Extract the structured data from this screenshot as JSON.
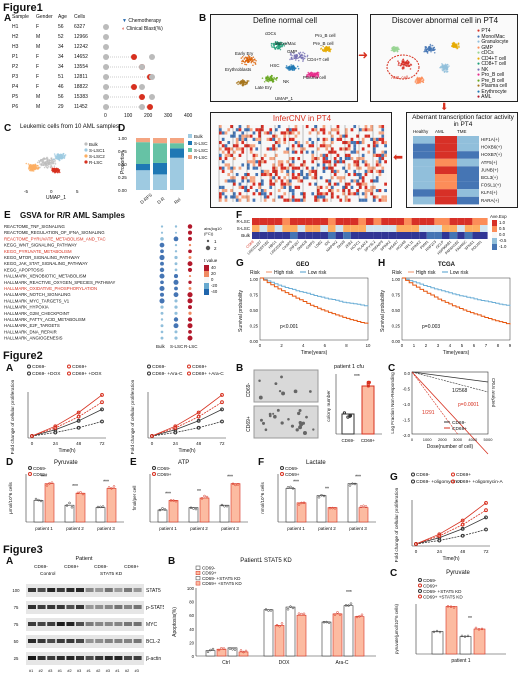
{
  "figure1": {
    "title": "Figure1",
    "panelA": {
      "label": "A",
      "headers": [
        "Sample",
        "Gender",
        "Age",
        "Cells"
      ],
      "rows": [
        [
          "H1",
          "F",
          "56",
          "6327"
        ],
        [
          "H2",
          "M",
          "52",
          "12966"
        ],
        [
          "H3",
          "M",
          "34",
          "12242"
        ],
        [
          "P1",
          "F",
          "34",
          "14652"
        ],
        [
          "P2",
          "F",
          "34",
          "13554"
        ],
        [
          "P3",
          "F",
          "51",
          "12811"
        ],
        [
          "P4",
          "F",
          "46",
          "18822"
        ],
        [
          "P5",
          "M",
          "56",
          "15383"
        ],
        [
          "P6",
          "M",
          "29",
          "11452"
        ]
      ],
      "legend_chemo": "Chemotherapy",
      "legend_blast": "Clinical Blast(%)",
      "axis_ticks": [
        "0",
        "100",
        "200",
        "300",
        "400"
      ]
    },
    "panelB": {
      "label": "B",
      "box1_title": "Define normal cell",
      "box2_title": "Discover abnormal cell in PT4",
      "box3_title": "InferCNV in PT4",
      "box4_title": "Aberrant transcription factor activity in PT4",
      "heat_cols": [
        "Healthy",
        "AML",
        "TME"
      ],
      "tf_list": [
        "HIF1A(+)",
        "HOXB6(+)",
        "HOXB7(+)",
        "ATF5(+)",
        "JUNB(+)",
        "BCL3(+)",
        "FOSL1(+)",
        "KLF4(+)",
        "RARA(+)"
      ],
      "umap_labels": [
        "Early Ery",
        "Mono/Mac",
        "GMP",
        "Erythroblasts",
        "HSC",
        "Pre_B cell",
        "CD4+T cell",
        "Pro_B cell",
        "Plasma cell",
        "NK",
        "cDCs",
        "Late Ery",
        "HSC",
        "NK",
        "CD8+T cell",
        "AML cell"
      ],
      "legend_items": [
        "PT4",
        "Mono/Mac",
        "Granulocyte",
        "GMP",
        "cDCs",
        "CD4+T cell",
        "CD8+T cell",
        "NK",
        "Pro_B cell",
        "Pre_B cell",
        "Plasma cell",
        "Erythrocyte",
        "AML"
      ],
      "axis_umap1": "UMAP_1",
      "axis_umap2": "UMAP_2"
    },
    "panelC": {
      "label": "C",
      "title": "Leukemic cells from 10 AML samples",
      "legend": [
        "Bulk",
        "S-LSC1",
        "S-LSC2",
        "R-LSC"
      ],
      "axis_x": "UMAP_1",
      "axis_y": "UMAP_2",
      "x_ticks": [
        "-5",
        "0",
        "5"
      ],
      "y_ticks": [
        "5",
        "0",
        "-5"
      ]
    },
    "panelD": {
      "label": "D",
      "ylabel": "Proportion",
      "categories": [
        "D-RFS",
        "D-R",
        "Rel"
      ],
      "legend": [
        "Bulk",
        "S-LSC1",
        "S-LSC2",
        "R-LSC"
      ],
      "y_ticks": [
        "0.00",
        "0.25",
        "0.50",
        "0.75",
        "1.00"
      ]
    },
    "panelE": {
      "label": "E",
      "title": "GSVA for R/R AML Samples",
      "pathways": [
        "REACTOME_TNF_SIGNALING",
        "REACTOME_REGULATION_OF_IFNA_SIGNALING",
        "REACTOME_PYRUVATE_METABOLISM_AND_TAC",
        "KEGG_WNT_SIGNALING_PATHWAY",
        "KEGG_PYRUVATE_METABOLISM",
        "KEGG_MTOR_SIGNALING_PATHWAY",
        "KEGG_JAK_STAT_SIGNALING_PATHWAY",
        "KEGG_APOPTOSIS",
        "HALLMARK_XENOBIOTIC_METABOLISM",
        "HALLMARK_REACTIVE_OXYGEN_SPECIES_PATHWAY",
        "HALLMARK_OXIDATIVE_PHOSPHORYLATION",
        "HALLMARK_NOTCH_SIGNALING",
        "HALLMARK_MYC_TARGETS_V1",
        "HALLMARK_HYPOXIA",
        "HALLMARK_G2M_CHECKPOINT",
        "HALLMARK_FATTY_ACID_METABOLISM",
        "HALLMARK_E2F_TARGETS",
        "HALLMARK_DNA_REPAIR",
        "HALLMARK_ANGIOGENESIS"
      ],
      "highlight": [
        "REACTOME_PYRUVATE_METABOLISM_AND_TAC",
        "KEGG_PYRUVATE_METABOLISM",
        "HALLMARK_OXIDATIVE_PHOSPHORYLATION"
      ],
      "cols": [
        "Bulk",
        "S-LSC",
        "R-LSC"
      ],
      "size_legend_title": "abs(log10\n(FC))",
      "size_legend": [
        "1",
        "2"
      ],
      "color_legend_title": "t value",
      "color_legend": [
        "40",
        "20",
        "0",
        "-20",
        "-40"
      ]
    },
    "panelF": {
      "label": "F",
      "rows": [
        "R-LSC",
        "S-LSC",
        "Bulk"
      ],
      "genes": [
        "CD69",
        "LINC01237",
        "EEF1B2",
        "HBG1",
        "LINC01876",
        "CKAP5",
        "ZNF267",
        "SNHG8",
        "GMPS",
        "LDB2",
        "ID2",
        "MAP4K2",
        "DHX9",
        "ZEB2",
        "HCFC1",
        "PLAAT4",
        "DPYSL2",
        "TNFAIP3",
        "SPINK2",
        "MS4A7",
        "HOXA9",
        "RPL11",
        "SPINK2",
        "PMM1",
        "RNF213",
        "OCLP",
        "HSP90AB1",
        "PAFAH1B2",
        "FAM46C",
        "SPNS1",
        "PDLIM1"
      ],
      "legend_title": "Ave.Exp",
      "legend_ticks": [
        "1.0",
        "0.5",
        "0.0",
        "-0.5",
        "-1.0"
      ]
    },
    "panelG": {
      "label": "G",
      "title": "GEO",
      "risk_label": "Risk",
      "risk_high": "High risk",
      "risk_low": "Low risk",
      "ylabel": "Survival probability",
      "xlabel": "Time(years)",
      "pvalue": "p<0.001",
      "x_ticks": [
        "0",
        "2",
        "4",
        "6",
        "8",
        "10"
      ],
      "y_ticks": [
        "1.00",
        "0.75",
        "0.50",
        "0.25",
        "0.00"
      ]
    },
    "panelH": {
      "label": "H",
      "title": "TCGA",
      "risk_label": "Risk",
      "risk_high": "High risk",
      "risk_low": "Low risk",
      "ylabel": "Survival probability",
      "xlabel": "Time(years)",
      "pvalue": "p=0.003",
      "x_ticks": [
        "0",
        "1",
        "2",
        "3",
        "4",
        "5",
        "6",
        "7",
        "8",
        "9"
      ],
      "y_ticks": [
        "1.00",
        "0.75",
        "0.50",
        "0.25",
        "0.00"
      ]
    }
  },
  "figure2": {
    "title": "Figure2",
    "panelA": {
      "label": "A",
      "ylabel": "Fold change of cellular proliferation",
      "xlabel": "Time(h)",
      "legend1": [
        "CD69-",
        "CD69+",
        "CD69- +DOX",
        "CD69+ +DOX"
      ],
      "legend2": [
        "CD69-",
        "CD69+",
        "CD69- +Ara-C",
        "CD69+ +Ara-C"
      ],
      "x_ticks": [
        "0",
        "24",
        "48",
        "72"
      ],
      "y_ticks": [
        "15",
        "10",
        "5",
        "0"
      ]
    },
    "panelB": {
      "label": "B",
      "title": "patient 1 cfu",
      "ylabel": "colony number",
      "rows": [
        "CD69-",
        "CD69+"
      ],
      "categories": [
        "CD69-",
        "CD69+"
      ],
      "sig": "***"
    },
    "panelC": {
      "label": "C",
      "ylabel": "Log Fraction Non-Responding",
      "xlabel": "Dose(number of cell)",
      "ann1": "1/2568",
      "ann2": "1/291",
      "pval": "p=0.0001",
      "side_note": "CRUs analyzed by survival curve",
      "legend": [
        "CD69-",
        "CD69+"
      ],
      "x_ticks": [
        "0",
        "1000",
        "2000",
        "3000",
        "4000",
        "5000"
      ],
      "y_ticks": [
        "0.0",
        "-0.5",
        "-1.0",
        "-1.5",
        "-2.0"
      ]
    },
    "panelD": {
      "label": "D",
      "title": "Pyruvate",
      "ylabel": "μmol/10^6 cells",
      "legend": [
        "CD69-",
        "CD69+"
      ],
      "groups": [
        "patient 1",
        "patient 2",
        "patient 3"
      ],
      "sig": [
        "***",
        "***",
        "***"
      ]
    },
    "panelE": {
      "label": "E",
      "title": "ATP",
      "ylabel": "fmol/per cell",
      "legend": [
        "CD69-",
        "CD69+"
      ],
      "groups": [
        "patient 1",
        "patient 2",
        "patient 3"
      ],
      "sig": [
        "***",
        "**",
        "***"
      ]
    },
    "panelF": {
      "label": "F",
      "title": "Lactate",
      "ylabel": "nmol/10^6 cells",
      "legend": [
        "CD69-",
        "CD69+"
      ],
      "groups": [
        "patient 1",
        "patient 2",
        "patient 3"
      ],
      "sig": [
        "***",
        "**",
        "***"
      ]
    },
    "panelG": {
      "label": "G",
      "ylabel": "Fold change of cellular proliferation",
      "xlabel": "Time(h)",
      "legend": [
        "CD69-",
        "CD69+",
        "CD69- +oligomycin-A",
        "CD69+ +oligomycin-A"
      ],
      "x_ticks": [
        "0",
        "24",
        "48",
        "72"
      ]
    }
  },
  "figure3": {
    "title": "Figure3",
    "panelA": {
      "label": "A",
      "patient_label": "Patient",
      "groups": [
        "CD69-",
        "CD69+",
        "CD69-",
        "CD69+"
      ],
      "control_label": "Control",
      "kd_label": "STAT5 KD",
      "bands": [
        "STAT5",
        "p-STAT5",
        "MYC",
        "BCL-2",
        "β-actin"
      ],
      "mw": [
        "100",
        "75",
        "75",
        "50",
        "25",
        "50",
        "37"
      ],
      "lane_labels": [
        "#1",
        "#2",
        "#3",
        "#1",
        "#2",
        "#3",
        "#1",
        "#2",
        "#3",
        "#1",
        "#2",
        "#3"
      ]
    },
    "panelB": {
      "label": "B",
      "title": "Patient1 STAT5 KD",
      "ylabel": "Apoptosis(%)",
      "legend": [
        "CD69-",
        "CD69+",
        "CD69- +STAT5 KD",
        "CD69+ +STAT5 KD"
      ],
      "groups": [
        "Ctrl",
        "DOX",
        "Ara-C"
      ],
      "y_ticks": [
        "100",
        "80",
        "60",
        "40",
        "20",
        "0"
      ],
      "sig": "***"
    },
    "panelC": {
      "label": "C",
      "title": "Pyruvate",
      "ylabel": "pyruvate(μmol/10^6 cells)",
      "legend": [
        "CD69-",
        "CD69+",
        "CD69- +STAT5 KD",
        "CD69+ +STAT5 KD"
      ],
      "group": "patient 1",
      "sig": "**"
    }
  },
  "colors": {
    "red": "#d7301f",
    "salmon": "#f4a582",
    "blue": "#2166ac",
    "navy": "#313695",
    "teal": "#66c2a5",
    "lightblue": "#9ecae1"
  }
}
